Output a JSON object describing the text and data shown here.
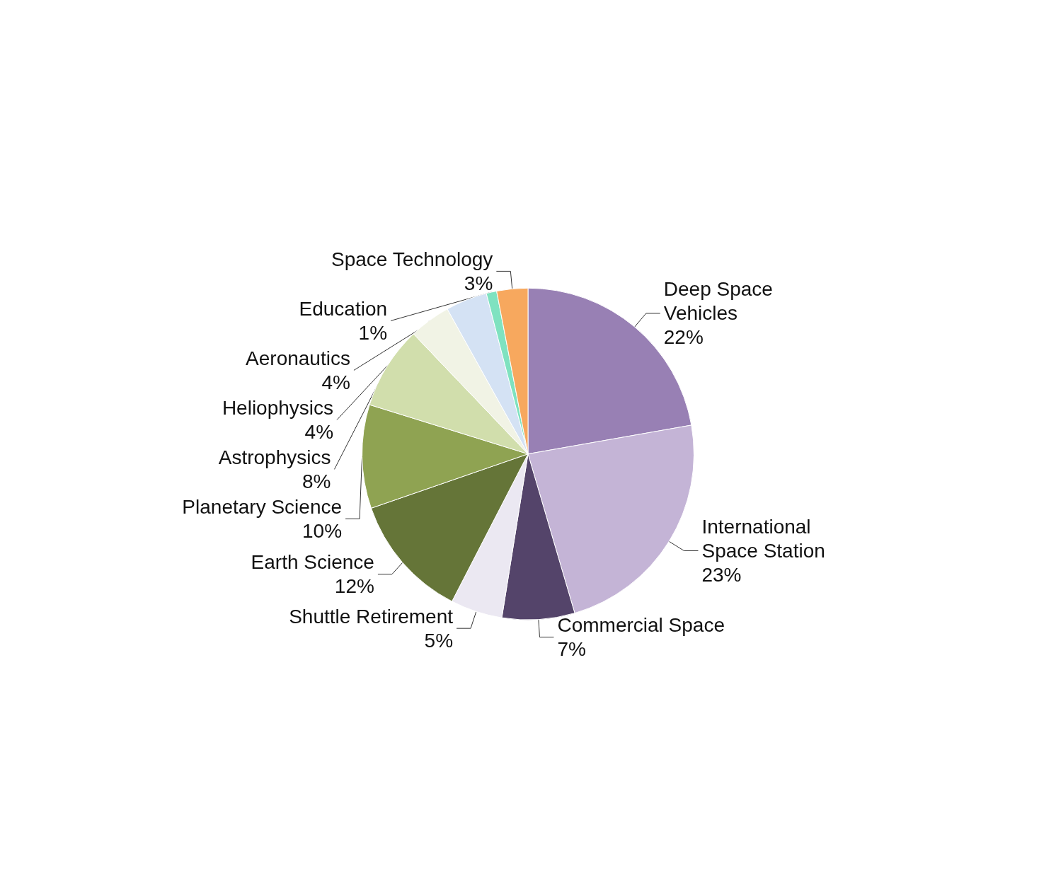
{
  "chart_data": {
    "type": "pie",
    "categories": [
      "Deep Space Vehicles",
      "International Space Station",
      "Commercial Space",
      "Shuttle Retirement",
      "Earth Science",
      "Planetary Science",
      "Astrophysics",
      "Heliophysics",
      "Aeronautics",
      "Education",
      "Space Technology"
    ],
    "values": [
      22,
      23,
      7,
      5,
      12,
      10,
      8,
      4,
      4,
      1,
      3
    ],
    "value_labels": [
      "22%",
      "23%",
      "7%",
      "5%",
      "12%",
      "10%",
      "8%",
      "4%",
      "4%",
      "1%",
      "3%"
    ],
    "colors": [
      "#9880b4",
      "#c4b4d6",
      "#54446a",
      "#ebe8f2",
      "#657538",
      "#8fa352",
      "#d1deac",
      "#f1f3e5",
      "#d4e2f4",
      "#7fe2c0",
      "#f7a85e"
    ],
    "legend": false
  }
}
